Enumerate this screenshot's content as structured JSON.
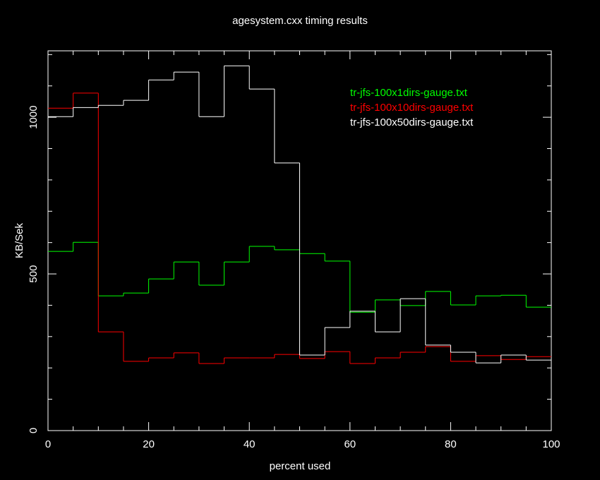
{
  "chart_data": {
    "type": "histogram",
    "title": "agesystem.cxx timing results",
    "xlabel": "percent used",
    "ylabel": "KB/Sek",
    "bins": [
      0,
      5,
      10,
      15,
      20,
      25,
      30,
      35,
      40,
      45,
      50,
      55,
      60,
      65,
      70,
      75,
      80,
      85,
      90,
      95,
      100
    ],
    "series": [
      {
        "name": "tr-jfs-100x1dirs-gauge.txt",
        "color": "#00ff00",
        "values": [
          572,
          601,
          430,
          439,
          484,
          538,
          464,
          538,
          588,
          577,
          565,
          541,
          378,
          417,
          399,
          444,
          401,
          430,
          432,
          394
        ]
      },
      {
        "name": "tr-jfs-100x10dirs-gauge.txt",
        "color": "#ff0000",
        "values": [
          1029,
          1077,
          315,
          221,
          232,
          248,
          214,
          232,
          232,
          243,
          230,
          252,
          214,
          232,
          250,
          268,
          221,
          239,
          227,
          236
        ]
      },
      {
        "name": "tr-jfs-100x50dirs-gauge.txt",
        "color": "#ffffff",
        "values": [
          1002,
          1031,
          1038,
          1054,
          1119,
          1144,
          1002,
          1164,
          1090,
          854,
          241,
          329,
          381,
          315,
          421,
          273,
          250,
          216,
          241,
          225
        ]
      }
    ],
    "xlim": [
      0,
      100
    ],
    "ylim": [
      0,
      1212
    ],
    "xticks": [
      0,
      20,
      40,
      60,
      80,
      100
    ],
    "yticks": [
      0,
      500,
      1000
    ],
    "xminorticks": [
      5,
      10,
      15,
      25,
      30,
      35,
      45,
      50,
      55,
      65,
      70,
      75,
      85,
      90,
      95
    ],
    "yminorticks": [
      100,
      200,
      300,
      400,
      600,
      700,
      800,
      900,
      1100,
      1200
    ],
    "legend": "upper right",
    "background": "#000000",
    "axis_color": "#ffffff"
  }
}
